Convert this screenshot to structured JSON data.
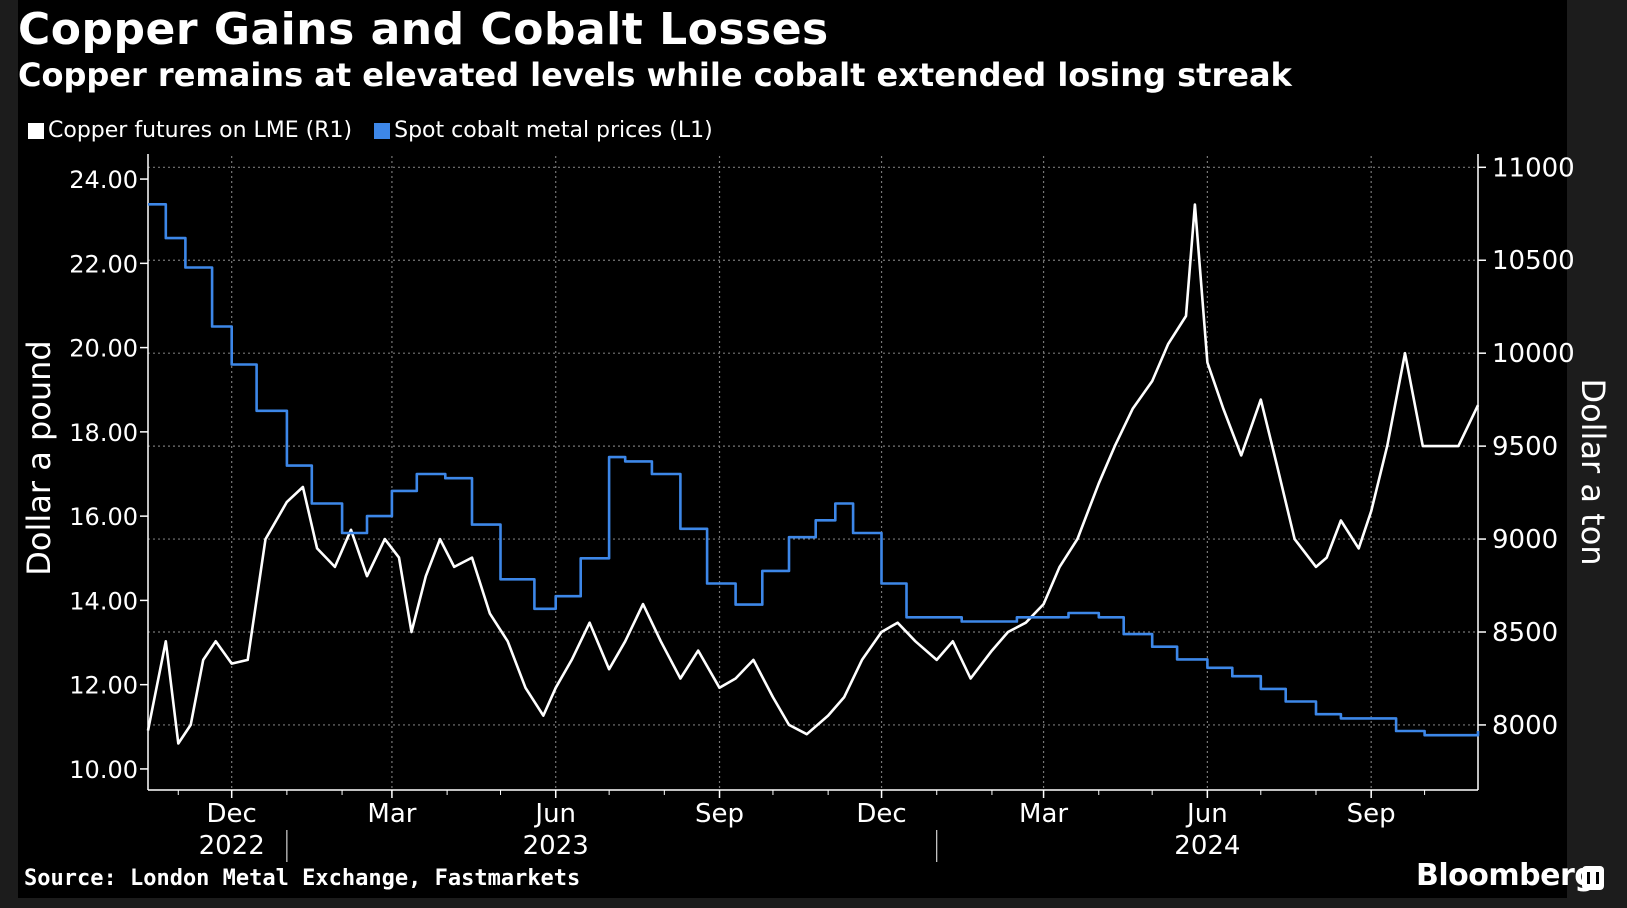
{
  "chart_data": {
    "type": "line",
    "title": "Copper Gains and Cobalt Losses",
    "subtitle": "Copper remains at elevated levels while cobalt extended losing streak",
    "source": "Source: London Metal Exchange, Fastmarkets",
    "brand": "Bloomberg",
    "ylabel_left": "Dollar a pound",
    "ylabel_right": "Dollar a ton",
    "x_range": [
      "2022-10-15",
      "2024-10-31"
    ],
    "ylim_left": [
      9.5,
      24.5
    ],
    "ylim_right": [
      7650,
      11050
    ],
    "yticks_left": [
      "24.00",
      "22.00",
      "20.00",
      "18.00",
      "16.00",
      "14.00",
      "12.00",
      "10.00"
    ],
    "yticks_left_values": [
      24,
      22,
      20,
      18,
      16,
      14,
      12,
      10
    ],
    "yticks_right": [
      "11000",
      "10500",
      "10000",
      "9500",
      "9000",
      "8500",
      "8000"
    ],
    "yticks_right_values": [
      11000,
      10500,
      10000,
      9500,
      9000,
      8500,
      8000
    ],
    "xticks": [
      {
        "date": "2022-12-01",
        "label": "Dec"
      },
      {
        "date": "2023-03-01",
        "label": "Mar"
      },
      {
        "date": "2023-06-01",
        "label": "Jun"
      },
      {
        "date": "2023-09-01",
        "label": "Sep"
      },
      {
        "date": "2023-12-01",
        "label": "Dec"
      },
      {
        "date": "2024-03-01",
        "label": "Mar"
      },
      {
        "date": "2024-06-01",
        "label": "Jun"
      },
      {
        "date": "2024-09-01",
        "label": "Sep"
      }
    ],
    "year_labels": [
      {
        "label": "2022",
        "date": "2022-12-01"
      },
      {
        "label": "2023",
        "date": "2023-06-01"
      },
      {
        "label": "2024",
        "date": "2024-06-01"
      }
    ],
    "year_dividers": [
      "2023-01-01",
      "2024-01-01"
    ],
    "legend_position": "top-left",
    "grid": true,
    "series": [
      {
        "name": "Copper futures on LME (R1)",
        "axis": "right",
        "color": "#ffffff",
        "x": [
          "2022-10-15",
          "2022-10-25",
          "2022-11-01",
          "2022-11-08",
          "2022-11-15",
          "2022-11-22",
          "2022-12-01",
          "2022-12-10",
          "2022-12-20",
          "2023-01-01",
          "2023-01-10",
          "2023-01-18",
          "2023-01-28",
          "2023-02-06",
          "2023-02-15",
          "2023-02-25",
          "2023-03-05",
          "2023-03-12",
          "2023-03-20",
          "2023-03-28",
          "2023-04-05",
          "2023-04-15",
          "2023-04-25",
          "2023-05-05",
          "2023-05-15",
          "2023-05-25",
          "2023-06-01",
          "2023-06-10",
          "2023-06-20",
          "2023-07-01",
          "2023-07-10",
          "2023-07-20",
          "2023-07-30",
          "2023-08-10",
          "2023-08-20",
          "2023-09-01",
          "2023-09-10",
          "2023-09-20",
          "2023-10-01",
          "2023-10-10",
          "2023-10-20",
          "2023-11-01",
          "2023-11-10",
          "2023-11-20",
          "2023-12-01",
          "2023-12-10",
          "2023-12-20",
          "2024-01-01",
          "2024-01-10",
          "2024-01-20",
          "2024-02-01",
          "2024-02-10",
          "2024-02-20",
          "2024-03-01",
          "2024-03-10",
          "2024-03-20",
          "2024-04-01",
          "2024-04-10",
          "2024-04-20",
          "2024-05-01",
          "2024-05-10",
          "2024-05-20",
          "2024-05-25",
          "2024-06-01",
          "2024-06-10",
          "2024-06-20",
          "2024-07-01",
          "2024-07-10",
          "2024-07-20",
          "2024-08-01",
          "2024-08-07",
          "2024-08-15",
          "2024-08-25",
          "2024-09-01",
          "2024-09-10",
          "2024-09-20",
          "2024-09-30",
          "2024-10-10",
          "2024-10-20",
          "2024-10-31"
        ],
        "values": [
          7970,
          8450,
          7900,
          8000,
          8350,
          8450,
          8330,
          8350,
          9000,
          9200,
          9280,
          8950,
          8850,
          9050,
          8800,
          9000,
          8900,
          8500,
          8800,
          9000,
          8850,
          8900,
          8600,
          8450,
          8200,
          8050,
          8200,
          8350,
          8550,
          8300,
          8450,
          8650,
          8450,
          8250,
          8400,
          8200,
          8250,
          8350,
          8150,
          8000,
          7950,
          8050,
          8150,
          8350,
          8500,
          8550,
          8450,
          8350,
          8450,
          8250,
          8400,
          8500,
          8550,
          8650,
          8850,
          9000,
          9300,
          9500,
          9700,
          9850,
          10050,
          10200,
          10800,
          9950,
          9700,
          9450,
          9750,
          9400,
          9000,
          8850,
          8900,
          9100,
          8950,
          9150,
          9500,
          10000,
          9500,
          9500,
          9500,
          9720
        ]
      },
      {
        "name": "Spot cobalt metal prices (L1)",
        "axis": "left",
        "color": "#3d87e8",
        "x": [
          "2022-10-15",
          "2022-10-25",
          "2022-11-05",
          "2022-11-20",
          "2022-12-01",
          "2022-12-15",
          "2023-01-01",
          "2023-01-15",
          "2023-02-01",
          "2023-02-15",
          "2023-03-01",
          "2023-03-15",
          "2023-03-31",
          "2023-04-15",
          "2023-05-01",
          "2023-05-20",
          "2023-06-01",
          "2023-06-15",
          "2023-07-01",
          "2023-07-10",
          "2023-07-25",
          "2023-08-10",
          "2023-08-25",
          "2023-09-10",
          "2023-09-25",
          "2023-10-10",
          "2023-10-25",
          "2023-11-05",
          "2023-11-15",
          "2023-12-01",
          "2023-12-15",
          "2024-01-01",
          "2024-01-15",
          "2024-02-01",
          "2024-02-15",
          "2024-03-01",
          "2024-03-15",
          "2024-04-01",
          "2024-04-15",
          "2024-05-01",
          "2024-05-15",
          "2024-06-01",
          "2024-06-15",
          "2024-07-01",
          "2024-07-15",
          "2024-08-01",
          "2024-08-15",
          "2024-09-01",
          "2024-09-15",
          "2024-10-01",
          "2024-10-15",
          "2024-10-31"
        ],
        "values": [
          23.4,
          22.6,
          21.9,
          20.5,
          19.6,
          18.5,
          17.2,
          16.3,
          15.6,
          16.0,
          16.6,
          17.0,
          16.9,
          15.8,
          14.5,
          13.8,
          14.1,
          15.0,
          17.4,
          17.3,
          17.0,
          15.7,
          14.4,
          13.9,
          14.7,
          15.5,
          15.9,
          16.3,
          15.6,
          14.4,
          13.6,
          13.6,
          13.5,
          13.5,
          13.6,
          13.6,
          13.7,
          13.6,
          13.2,
          12.9,
          12.6,
          12.4,
          12.2,
          11.9,
          11.6,
          11.3,
          11.2,
          11.2,
          10.9,
          10.8,
          10.8,
          10.9
        ]
      }
    ]
  }
}
